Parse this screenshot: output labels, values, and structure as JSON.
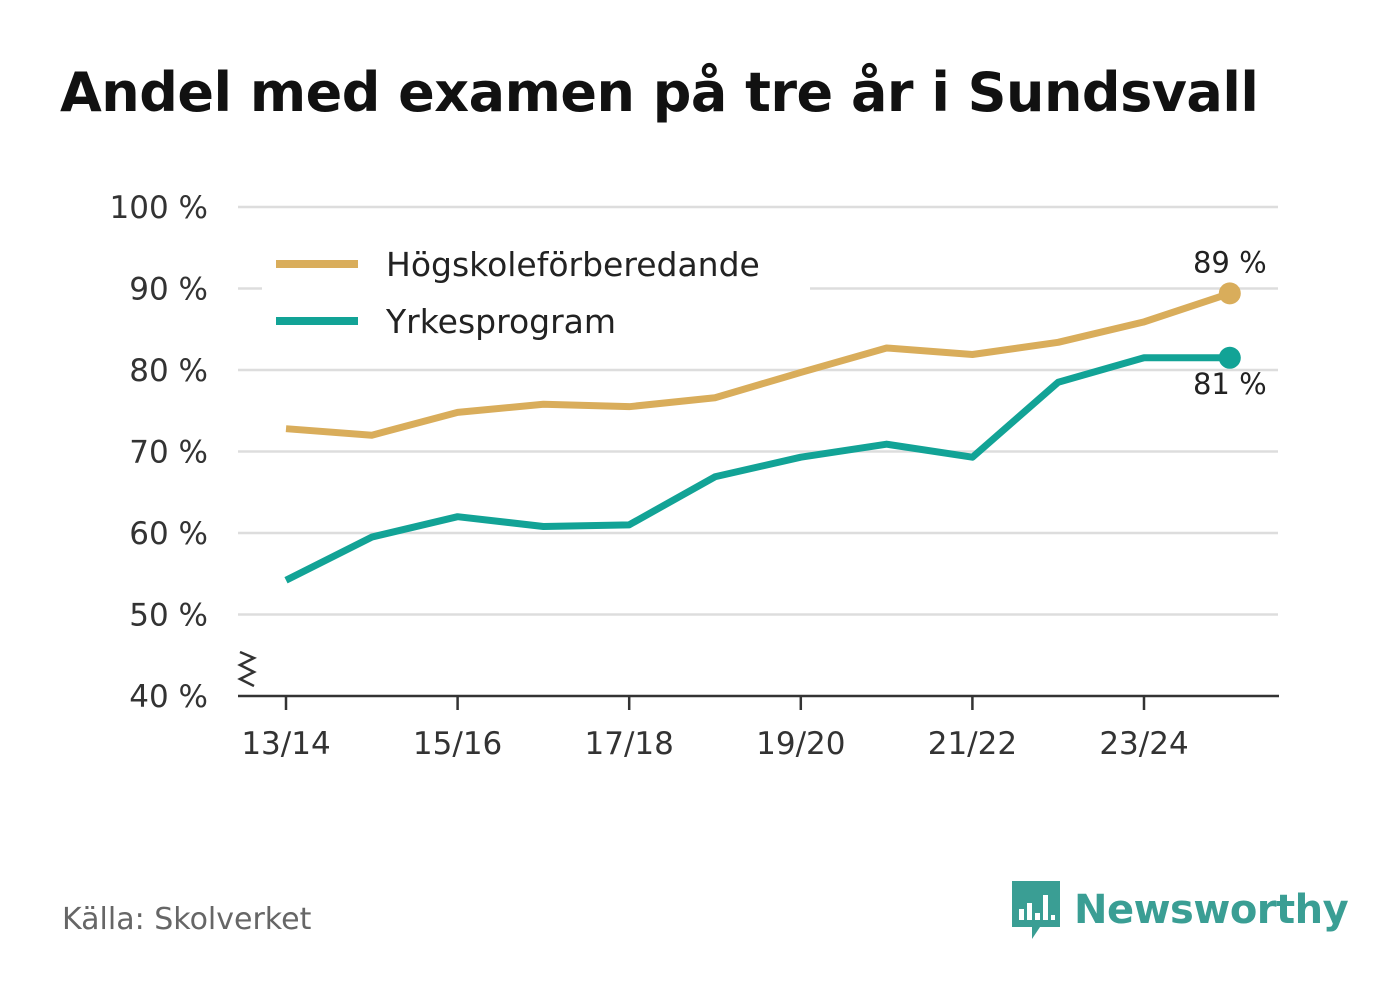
{
  "title": "Andel med examen på tre år i Sundsvall",
  "source": "Källa: Skolverket",
  "brand": "Newsworthy",
  "colors": {
    "series_1": "#d9ad5b",
    "series_2": "#12a396",
    "grid": "#dddddd",
    "axis": "#333333",
    "brand": "#3a9e94"
  },
  "chart_data": {
    "type": "line",
    "title": "Andel med examen på tre år i Sundsvall",
    "xlabel": "",
    "ylabel": "",
    "x": [
      "13/14",
      "14/15",
      "15/16",
      "16/17",
      "17/18",
      "18/19",
      "19/20",
      "20/21",
      "21/22",
      "22/23",
      "23/24",
      "24/25"
    ],
    "x_tick_labels": [
      "13/14",
      "15/16",
      "17/18",
      "19/20",
      "21/22",
      "23/24"
    ],
    "y_ticks": [
      40,
      50,
      60,
      70,
      80,
      90,
      100
    ],
    "y_tick_labels": [
      "40 %",
      "50 %",
      "60 %",
      "70 %",
      "80 %",
      "90 %",
      "100 %"
    ],
    "ylim": [
      40,
      100
    ],
    "y_axis_break": true,
    "legend_position": "top-left",
    "series": [
      {
        "name": "Högskoleförberedande",
        "color": "#d9ad5b",
        "values": [
          72.8,
          72.0,
          74.8,
          75.8,
          75.5,
          76.6,
          79.7,
          82.7,
          81.9,
          83.4,
          85.9,
          89.4
        ],
        "end_label": "89 %"
      },
      {
        "name": "Yrkesprogram",
        "color": "#12a396",
        "values": [
          54.2,
          59.5,
          62.0,
          60.8,
          61.0,
          66.9,
          69.3,
          70.9,
          69.3,
          78.5,
          81.5,
          81.5
        ],
        "end_label": "81 %"
      }
    ]
  }
}
